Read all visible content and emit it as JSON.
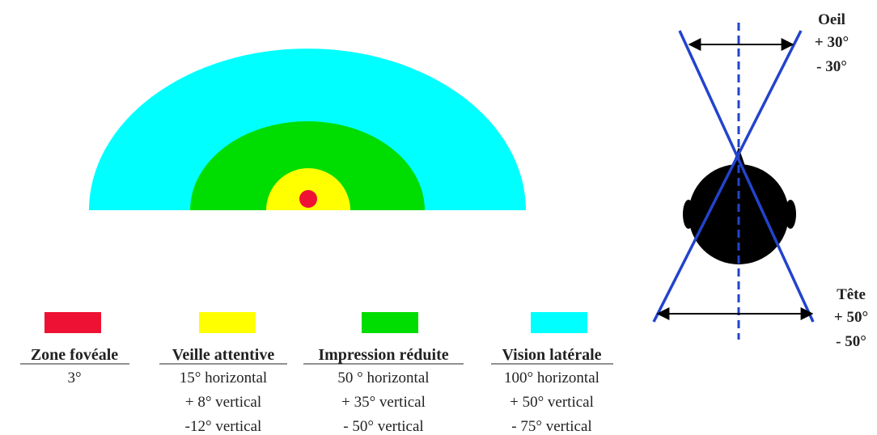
{
  "legend": [
    {
      "title": "Zone fovéale",
      "lines": [
        "3°"
      ]
    },
    {
      "title": "Veille attentive",
      "lines": [
        "15° horizontal",
        "+ 8° vertical",
        "-12° vertical"
      ]
    },
    {
      "title": "Impression réduite",
      "lines": [
        "50 ° horizontal",
        "+ 35° vertical",
        "- 50° vertical"
      ]
    },
    {
      "title": "Vision latérale",
      "lines": [
        "100° horizontal",
        "+ 50° vertical",
        "- 75° vertical"
      ]
    }
  ],
  "head_diagram": {
    "eye": {
      "label": "Oeil",
      "lines": [
        "+ 30°",
        "- 30°"
      ]
    },
    "head": {
      "label": "Tête",
      "lines": [
        "+ 50°",
        "- 50°"
      ]
    }
  }
}
